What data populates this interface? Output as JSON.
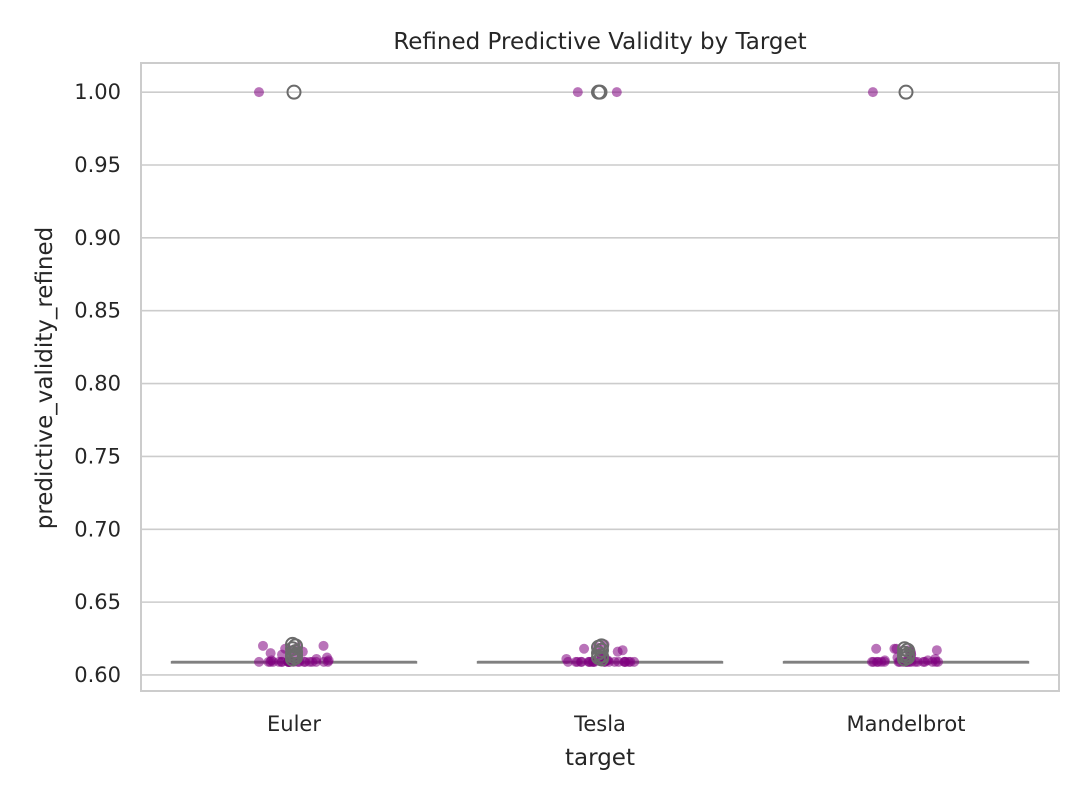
{
  "chart_data": {
    "type": "box",
    "title": "Refined Predictive Validity by Target",
    "xlabel": "target",
    "ylabel": "predictive_validity_refined",
    "categories": [
      "Euler",
      "Tesla",
      "Mandelbrot"
    ],
    "ylim": [
      0.589,
      1.02
    ],
    "yticks": [
      0.6,
      0.65,
      0.7,
      0.75,
      0.8,
      0.85,
      0.9,
      0.95,
      1.0
    ],
    "ytick_labels": [
      "0.60",
      "0.65",
      "0.70",
      "0.75",
      "0.80",
      "0.85",
      "0.90",
      "0.95",
      "1.00"
    ],
    "grid": true,
    "colors": {
      "points": "#800080",
      "box": "#808080",
      "grid": "#cccccc"
    },
    "boxes": [
      {
        "category": "Euler",
        "q1": 0.609,
        "median": 0.609,
        "q3": 0.609,
        "whisker_low": 0.609,
        "whisker_high": 0.609,
        "fliers": [
          1.0,
          0.621,
          0.62,
          0.618,
          0.616,
          0.615,
          0.614,
          0.613,
          0.612,
          0.611
        ]
      },
      {
        "category": "Tesla",
        "q1": 0.609,
        "median": 0.609,
        "q3": 0.609,
        "whisker_low": 0.609,
        "whisker_high": 0.609,
        "fliers": [
          1.0,
          1.0,
          0.62,
          0.619,
          0.617,
          0.615,
          0.613,
          0.612,
          0.611
        ]
      },
      {
        "category": "Mandelbrot",
        "q1": 0.609,
        "median": 0.609,
        "q3": 0.609,
        "whisker_low": 0.609,
        "whisker_high": 0.609,
        "fliers": [
          1.0,
          0.618,
          0.617,
          0.615,
          0.614,
          0.613,
          0.612,
          0.611
        ]
      }
    ],
    "strip_points": [
      {
        "category": "Euler",
        "values": [
          1.0,
          0.62,
          0.62,
          0.619,
          0.618,
          0.617,
          0.616,
          0.615,
          0.614,
          0.613,
          0.612,
          0.611,
          0.61,
          0.61,
          0.609,
          0.609,
          0.609,
          0.609,
          0.609,
          0.609,
          0.609,
          0.609,
          0.609,
          0.609,
          0.609,
          0.609,
          0.609,
          0.609,
          0.609,
          0.609,
          0.609,
          0.609,
          0.609,
          0.609,
          0.609,
          0.609
        ]
      },
      {
        "category": "Tesla",
        "values": [
          1.0,
          1.0,
          0.621,
          0.619,
          0.618,
          0.617,
          0.616,
          0.615,
          0.613,
          0.612,
          0.611,
          0.61,
          0.61,
          0.609,
          0.609,
          0.609,
          0.609,
          0.609,
          0.609,
          0.609,
          0.609,
          0.609,
          0.609,
          0.609,
          0.609,
          0.609,
          0.609,
          0.609,
          0.609,
          0.609,
          0.609,
          0.609,
          0.609,
          0.609,
          0.609
        ]
      },
      {
        "category": "Mandelbrot",
        "values": [
          1.0,
          0.618,
          0.618,
          0.618,
          0.617,
          0.617,
          0.616,
          0.615,
          0.614,
          0.613,
          0.612,
          0.611,
          0.61,
          0.61,
          0.609,
          0.609,
          0.609,
          0.609,
          0.609,
          0.609,
          0.609,
          0.609,
          0.609,
          0.609,
          0.609,
          0.609,
          0.609,
          0.609,
          0.609,
          0.609,
          0.609,
          0.609,
          0.609,
          0.609,
          0.609
        ]
      }
    ]
  }
}
